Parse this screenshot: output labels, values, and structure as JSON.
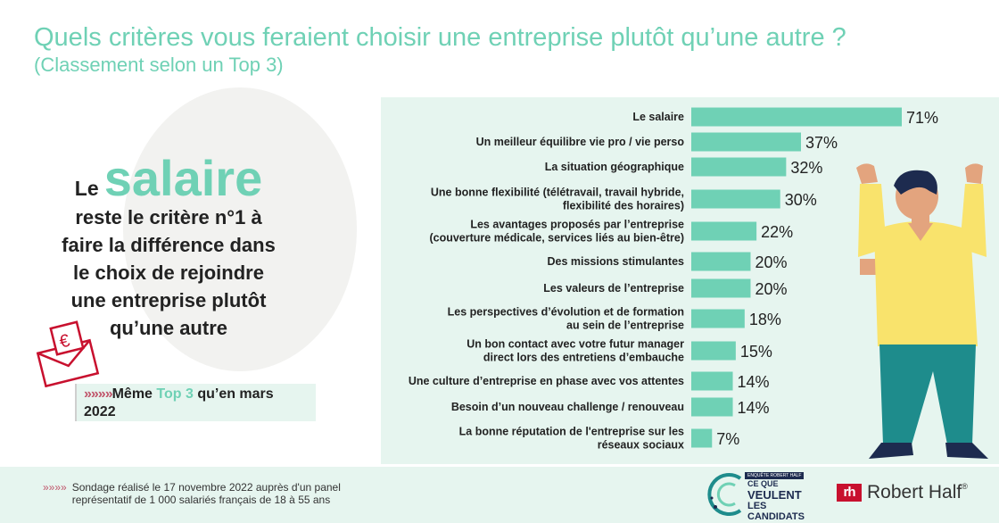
{
  "header": {
    "title": "Quels critères vous feraient choisir une entreprise plutôt qu’une autre ?",
    "subtitle": "(Classement selon un Top 3)"
  },
  "headline": {
    "lead": "Le",
    "big": "salaire",
    "line1": "reste le critère n°1 à",
    "line2": "faire la différence dans",
    "line3": "le choix de rejoindre",
    "line4": "une entreprise plutôt",
    "line5": "qu’une autre"
  },
  "callout": {
    "arrows": "»»»»",
    "before": "Même ",
    "highlight": "Top 3",
    "after": " qu’en mars",
    "line2": "2022"
  },
  "icons": {
    "envelope": "euro-envelope-icon",
    "arrows": "double-chevron-arrows-icon",
    "person": "cheering-person-illustration"
  },
  "colors": {
    "accent": "#6fd1b5",
    "bar": "#6fd1b5",
    "panel": "#e6f5ef",
    "arrows": "#c0556a",
    "brand_red": "#c8102e",
    "navy": "#1d2b4f"
  },
  "chart_data": {
    "type": "bar",
    "orientation": "horizontal",
    "unit": "%",
    "xlim": [
      0,
      71
    ],
    "grid": false,
    "categories": [
      [
        "Le salaire"
      ],
      [
        "Un meilleur équilibre vie pro / vie perso"
      ],
      [
        "La situation géographique"
      ],
      [
        "Une bonne flexibilité (télétravail, travail hybride,",
        "flexibilité des horaires)"
      ],
      [
        "Les avantages proposés par l’entreprise",
        "(couverture médicale, services liés au bien-être)"
      ],
      [
        "Des missions stimulantes"
      ],
      [
        "Les valeurs de l’entreprise"
      ],
      [
        "Les perspectives d’évolution et de formation",
        "au sein de l’entreprise"
      ],
      [
        "Un bon contact avec votre futur manager",
        "direct lors des entretiens d’embauche"
      ],
      [
        "Une culture d’entreprise en phase avec vos attentes"
      ],
      [
        "Besoin d’un nouveau challenge / renouveau"
      ],
      [
        "La bonne réputation de l'entreprise sur les",
        "réseaux sociaux"
      ]
    ],
    "values": [
      71,
      37,
      32,
      30,
      22,
      20,
      20,
      18,
      15,
      14,
      14,
      7
    ],
    "data_labels": [
      "71%",
      "37%",
      "32%",
      "30%",
      "22%",
      "20%",
      "20%",
      "18%",
      "15%",
      "14%",
      "14%",
      "7%"
    ]
  },
  "footer": {
    "arrows": "»»»»",
    "note_line1": "Sondage réalisé le 17 novembre 2022 auprès d'un panel",
    "note_line2": "représentatif de 1 000 salariés français de 18 à 55 ans",
    "cqvlc_badge": "ENQUÊTE ROBERT HALF",
    "cqvlc_line1": "CE QUE",
    "cqvlc_line2": "VEULENT",
    "cqvlc_line3": "LES CANDIDATS",
    "rh_mark": "rh",
    "rh_name": "Robert Half",
    "rh_reg": "®"
  }
}
